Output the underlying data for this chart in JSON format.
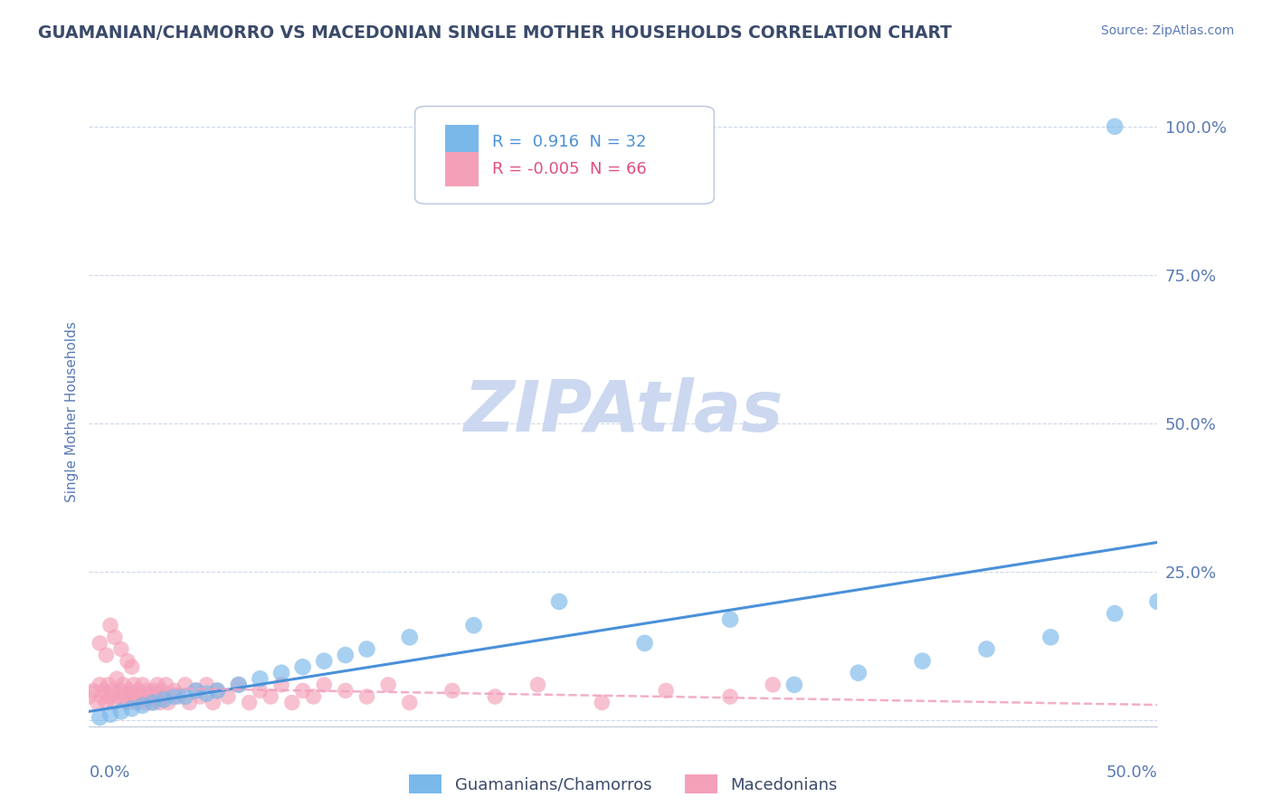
{
  "title": "GUAMANIAN/CHAMORRO VS MACEDONIAN SINGLE MOTHER HOUSEHOLDS CORRELATION CHART",
  "source": "Source: ZipAtlas.com",
  "ylabel": "Single Mother Households",
  "x_lim": [
    0.0,
    0.5
  ],
  "y_lim": [
    -0.01,
    1.05
  ],
  "blue_R": 0.916,
  "blue_N": 32,
  "pink_R": -0.005,
  "pink_N": 66,
  "blue_color": "#7ab8ea",
  "pink_color": "#f4a0b8",
  "blue_line_color": "#4a90d9",
  "pink_line_color": "#f0a0c0",
  "watermark": "ZIPAtlas",
  "watermark_color": "#ccd8f0",
  "background_color": "#ffffff",
  "grid_color": "#c8d4e8",
  "title_color": "#3a4a6a",
  "axis_label_color": "#5a7ab5",
  "legend_R_blue_color": "#4a90d9",
  "legend_R_pink_color": "#e05080",
  "blue_scatter_x": [
    0.005,
    0.01,
    0.015,
    0.02,
    0.025,
    0.03,
    0.035,
    0.04,
    0.045,
    0.05,
    0.055,
    0.06,
    0.07,
    0.08,
    0.09,
    0.1,
    0.11,
    0.12,
    0.13,
    0.15,
    0.18,
    0.22,
    0.26,
    0.3,
    0.33,
    0.36,
    0.39,
    0.42,
    0.45,
    0.48,
    0.5,
    0.48
  ],
  "blue_scatter_y": [
    0.005,
    0.01,
    0.015,
    0.02,
    0.025,
    0.03,
    0.035,
    0.04,
    0.04,
    0.05,
    0.045,
    0.05,
    0.06,
    0.07,
    0.08,
    0.09,
    0.1,
    0.11,
    0.12,
    0.14,
    0.16,
    0.2,
    0.13,
    0.17,
    0.06,
    0.08,
    0.1,
    0.12,
    0.14,
    0.18,
    0.2,
    1.0
  ],
  "pink_scatter_x": [
    0.0,
    0.002,
    0.004,
    0.005,
    0.006,
    0.007,
    0.008,
    0.009,
    0.01,
    0.011,
    0.012,
    0.013,
    0.014,
    0.015,
    0.016,
    0.017,
    0.018,
    0.019,
    0.02,
    0.021,
    0.022,
    0.023,
    0.024,
    0.025,
    0.026,
    0.027,
    0.028,
    0.029,
    0.03,
    0.031,
    0.032,
    0.033,
    0.034,
    0.035,
    0.036,
    0.037,
    0.04,
    0.042,
    0.045,
    0.047,
    0.05,
    0.052,
    0.055,
    0.058,
    0.06,
    0.065,
    0.07,
    0.075,
    0.08,
    0.085,
    0.09,
    0.095,
    0.1,
    0.105,
    0.11,
    0.12,
    0.13,
    0.14,
    0.15,
    0.17,
    0.19,
    0.21,
    0.24,
    0.27,
    0.3,
    0.32
  ],
  "pink_scatter_y": [
    0.04,
    0.05,
    0.03,
    0.06,
    0.04,
    0.05,
    0.03,
    0.06,
    0.04,
    0.05,
    0.03,
    0.07,
    0.04,
    0.05,
    0.06,
    0.04,
    0.03,
    0.05,
    0.04,
    0.06,
    0.03,
    0.05,
    0.04,
    0.06,
    0.03,
    0.05,
    0.04,
    0.03,
    0.05,
    0.04,
    0.06,
    0.03,
    0.05,
    0.04,
    0.06,
    0.03,
    0.05,
    0.04,
    0.06,
    0.03,
    0.05,
    0.04,
    0.06,
    0.03,
    0.05,
    0.04,
    0.06,
    0.03,
    0.05,
    0.04,
    0.06,
    0.03,
    0.05,
    0.04,
    0.06,
    0.05,
    0.04,
    0.06,
    0.03,
    0.05,
    0.04,
    0.06,
    0.03,
    0.05,
    0.04,
    0.06
  ],
  "pink_extra_y_x": [
    0.005,
    0.008,
    0.01,
    0.012,
    0.015,
    0.018,
    0.02
  ],
  "pink_extra_y_y": [
    0.13,
    0.11,
    0.16,
    0.14,
    0.12,
    0.1,
    0.09
  ]
}
